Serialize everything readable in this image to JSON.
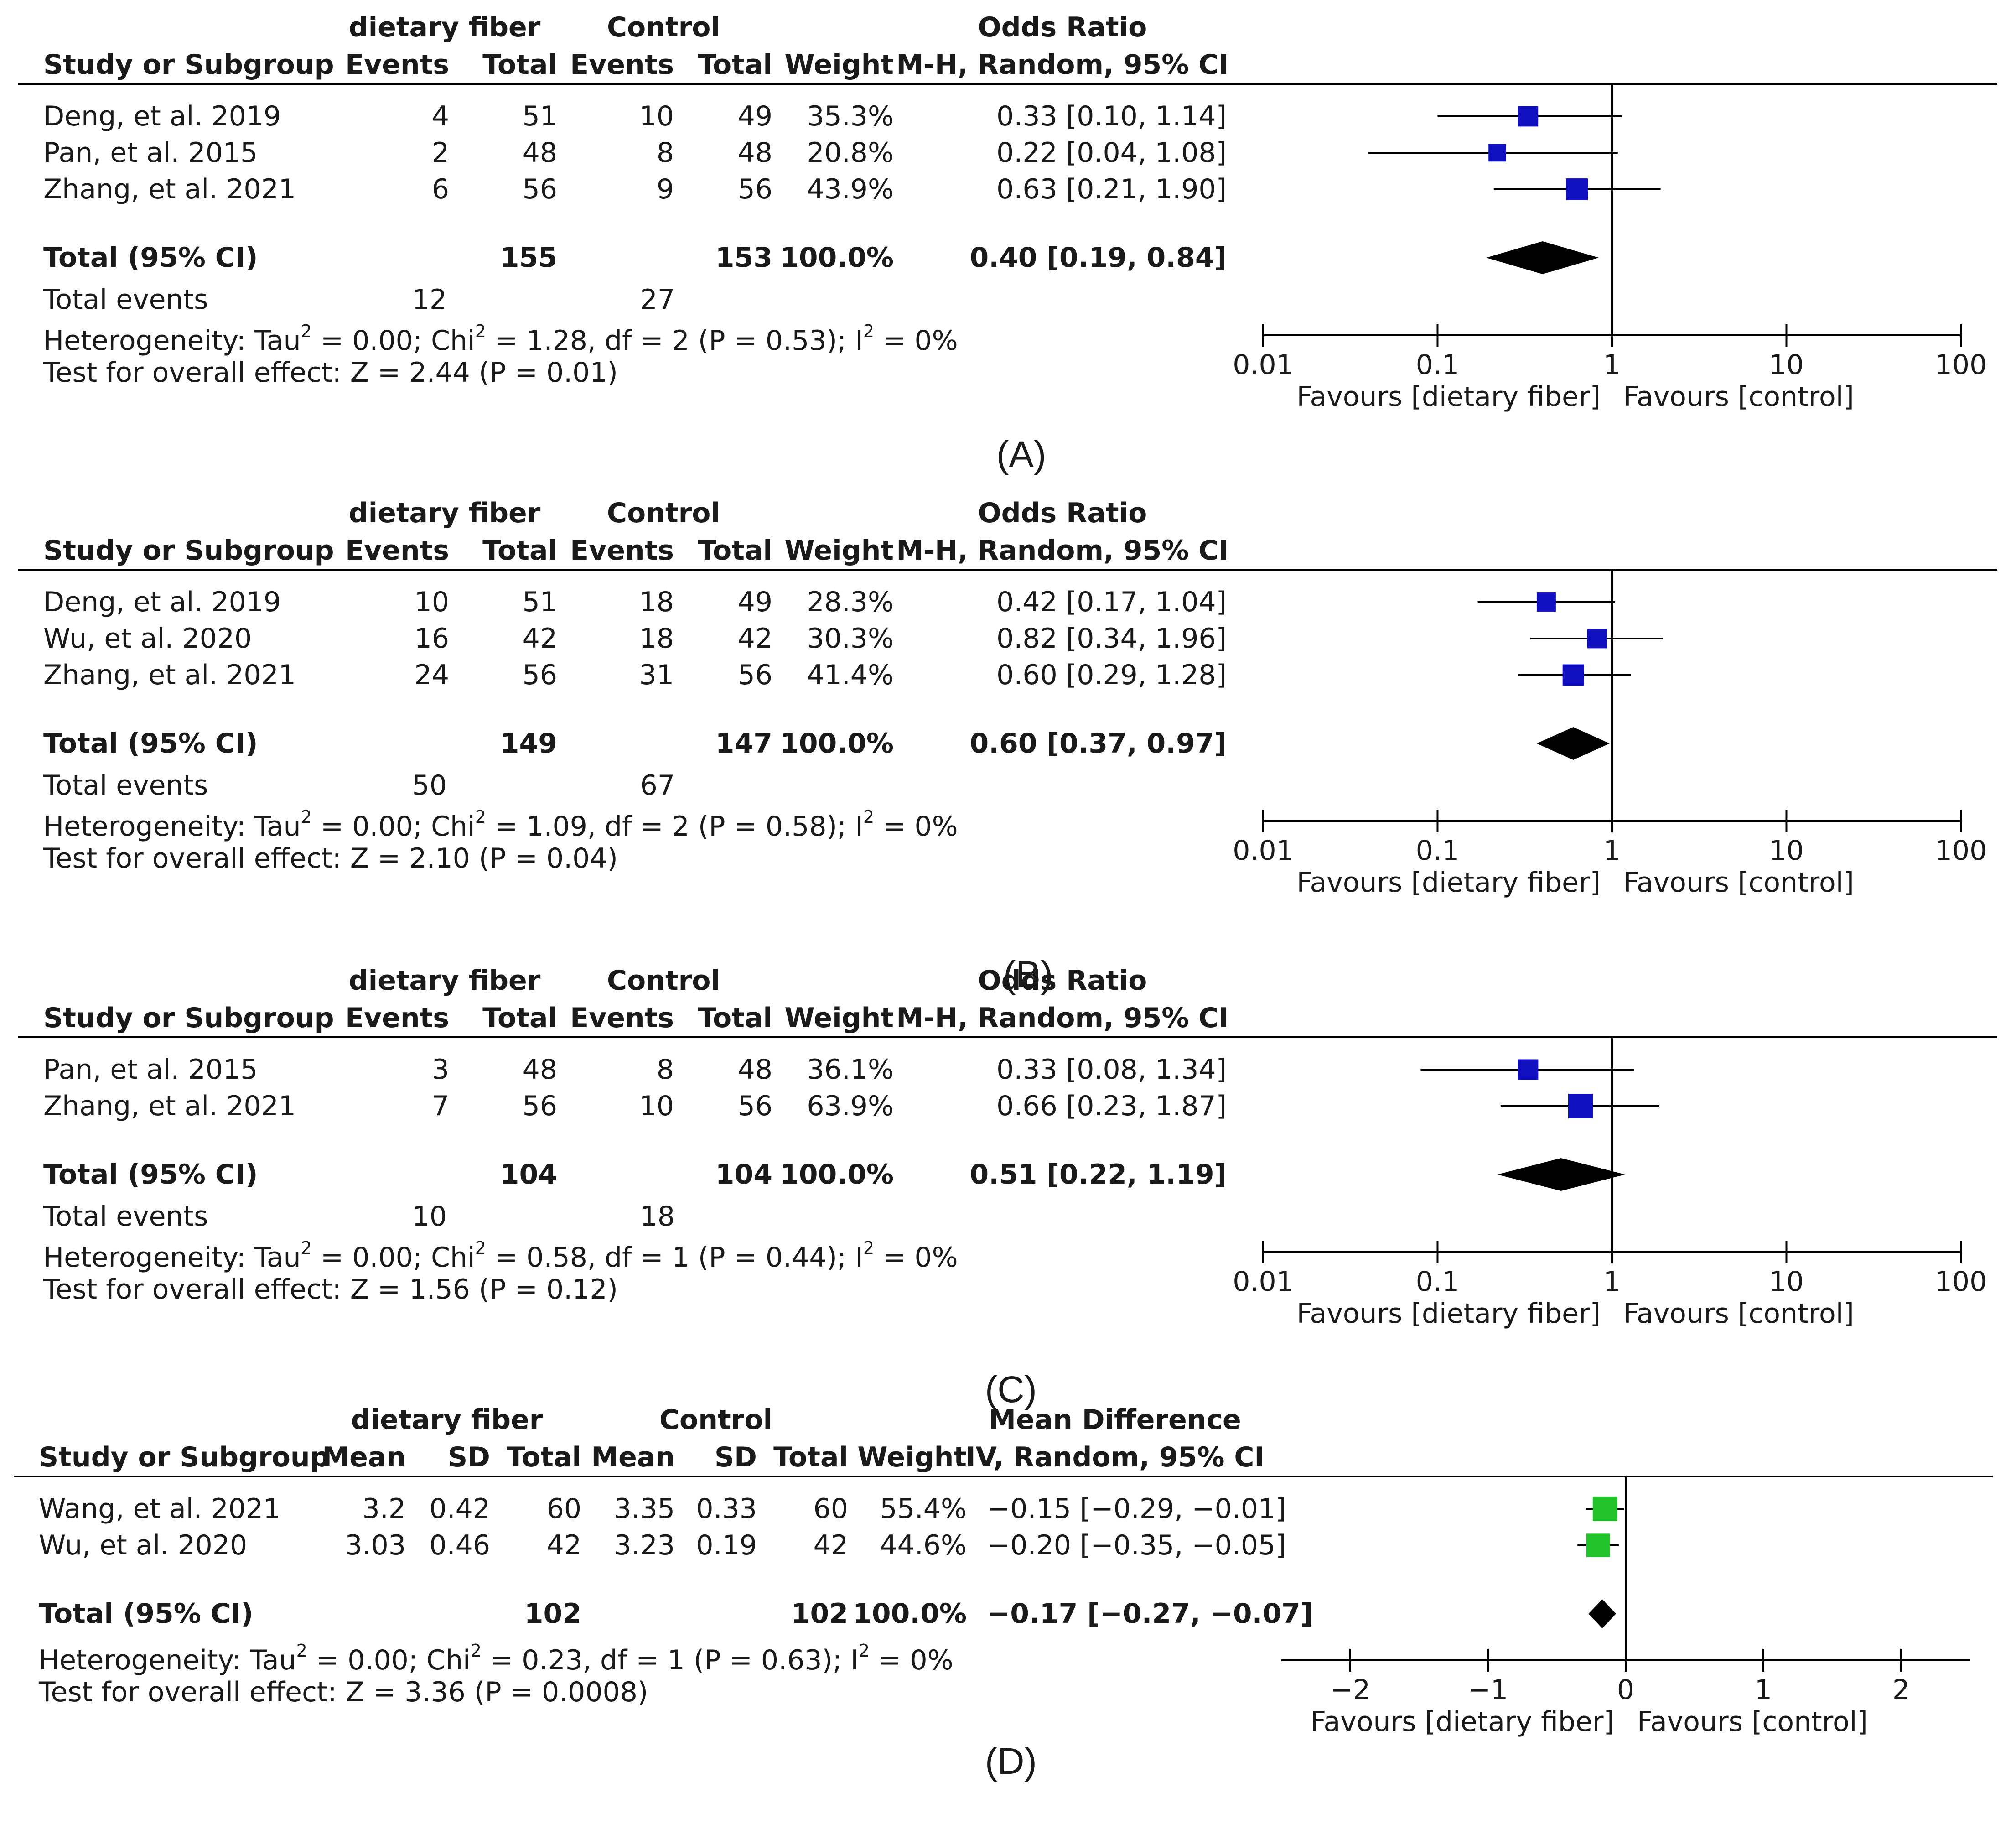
{
  "panels": [
    {
      "label": "(A)",
      "measure": "OR",
      "hdr_exp": "dietary fiber",
      "hdr_ctl": "Control",
      "col_study": "Study or Subgroup",
      "col_ev1": "Events",
      "col_tot1": "Total",
      "col_ev2": "Events",
      "col_tot2": "Total",
      "col_weight": "Weight",
      "effect_title": "Odds Ratio",
      "effect_method": "M-H, Random, 95% CI",
      "studies": [
        {
          "name": "Deng, et al. 2019",
          "e1": "4",
          "t1": "51",
          "e2": "10",
          "t2": "49",
          "weight": "35.3%",
          "ci_text": "0.33 [0.10, 1.14]"
        },
        {
          "name": "Pan, et al. 2015",
          "e1": "2",
          "t1": "48",
          "e2": "8",
          "t2": "48",
          "weight": "20.8%",
          "ci_text": "0.22 [0.04, 1.08]"
        },
        {
          "name": "Zhang, et al. 2021",
          "e1": "6",
          "t1": "56",
          "e2": "9",
          "t2": "56",
          "weight": "43.9%",
          "ci_text": "0.63 [0.21, 1.90]"
        }
      ],
      "total": {
        "label": "Total (95% CI)",
        "t1": "155",
        "t2": "153",
        "weight": "100.0%",
        "ci_text": "0.40 [0.19, 0.84]"
      },
      "events": {
        "label": "Total events",
        "e1": "12",
        "e2": "27"
      },
      "heterogeneity": {
        "pre": "Heterogeneity: Tau",
        "mid1": " = 0.00; Chi",
        "mid2": " = 1.28, df = 2 (P = 0.53); I",
        "post": " = 0%",
        "sup": "2"
      },
      "overall": "Test for overall effect: Z = 2.44 (P = 0.01)",
      "axis_ticks": [
        "0.01",
        "0.1",
        "1",
        "10",
        "100"
      ],
      "favours_left": "Favours [dietary fiber]",
      "favours_right": "Favours [control]"
    },
    {
      "label": "(B)",
      "measure": "OR",
      "hdr_exp": "dietary fiber",
      "hdr_ctl": "Control",
      "col_study": "Study or Subgroup",
      "col_ev1": "Events",
      "col_tot1": "Total",
      "col_ev2": "Events",
      "col_tot2": "Total",
      "col_weight": "Weight",
      "effect_title": "Odds Ratio",
      "effect_method": "M-H, Random, 95% CI",
      "studies": [
        {
          "name": "Deng, et al. 2019",
          "e1": "10",
          "t1": "51",
          "e2": "18",
          "t2": "49",
          "weight": "28.3%",
          "ci_text": "0.42 [0.17, 1.04]"
        },
        {
          "name": "Wu, et al. 2020",
          "e1": "16",
          "t1": "42",
          "e2": "18",
          "t2": "42",
          "weight": "30.3%",
          "ci_text": "0.82 [0.34, 1.96]"
        },
        {
          "name": "Zhang, et al. 2021",
          "e1": "24",
          "t1": "56",
          "e2": "31",
          "t2": "56",
          "weight": "41.4%",
          "ci_text": "0.60 [0.29, 1.28]"
        }
      ],
      "total": {
        "label": "Total (95% CI)",
        "t1": "149",
        "t2": "147",
        "weight": "100.0%",
        "ci_text": "0.60 [0.37, 0.97]"
      },
      "events": {
        "label": "Total events",
        "e1": "50",
        "e2": "67"
      },
      "heterogeneity": {
        "pre": "Heterogeneity: Tau",
        "mid1": " = 0.00; Chi",
        "mid2": " = 1.09, df = 2 (P = 0.58); I",
        "post": " = 0%",
        "sup": "2"
      },
      "overall": "Test for overall effect: Z = 2.10 (P = 0.04)",
      "axis_ticks": [
        "0.01",
        "0.1",
        "1",
        "10",
        "100"
      ],
      "favours_left": "Favours [dietary fiber]",
      "favours_right": "Favours [control]"
    },
    {
      "label": "(C)",
      "measure": "OR",
      "hdr_exp": "dietary fiber",
      "hdr_ctl": "Control",
      "col_study": "Study or Subgroup",
      "col_ev1": "Events",
      "col_tot1": "Total",
      "col_ev2": "Events",
      "col_tot2": "Total",
      "col_weight": "Weight",
      "effect_title": "Odds Ratio",
      "effect_method": "M-H, Random, 95% CI",
      "studies": [
        {
          "name": "Pan, et al. 2015",
          "e1": "3",
          "t1": "48",
          "e2": "8",
          "t2": "48",
          "weight": "36.1%",
          "ci_text": "0.33 [0.08, 1.34]"
        },
        {
          "name": "Zhang, et al. 2021",
          "e1": "7",
          "t1": "56",
          "e2": "10",
          "t2": "56",
          "weight": "63.9%",
          "ci_text": "0.66 [0.23, 1.87]"
        }
      ],
      "total": {
        "label": "Total (95% CI)",
        "t1": "104",
        "t2": "104",
        "weight": "100.0%",
        "ci_text": "0.51 [0.22, 1.19]"
      },
      "events": {
        "label": "Total events",
        "e1": "10",
        "e2": "18"
      },
      "heterogeneity": {
        "pre": "Heterogeneity: Tau",
        "mid1": " = 0.00; Chi",
        "mid2": " = 0.58, df = 1 (P = 0.44); I",
        "post": " = 0%",
        "sup": "2"
      },
      "overall": "Test for overall effect: Z = 1.56 (P = 0.12)",
      "axis_ticks": [
        "0.01",
        "0.1",
        "1",
        "10",
        "100"
      ],
      "favours_left": "Favours [dietary fiber]",
      "favours_right": "Favours [control]"
    },
    {
      "label": "(D)",
      "measure": "MD",
      "hdr_exp": "dietary fiber",
      "hdr_ctl": "Control",
      "col_study": "Study or Subgroup",
      "col_mean1": "Mean",
      "col_sd1": "SD",
      "col_tot1": "Total",
      "col_mean2": "Mean",
      "col_sd2": "SD",
      "col_tot2": "Total",
      "col_weight": "Weight",
      "effect_title": "Mean Difference",
      "effect_method": "IV, Random, 95% CI",
      "studies": [
        {
          "name": "Wang, et al. 2021",
          "m1": "3.2",
          "sd1": "0.42",
          "t1": "60",
          "m2": "3.35",
          "sd2": "0.33",
          "t2": "60",
          "weight": "55.4%",
          "ci_text": "−0.15 [−0.29, −0.01]"
        },
        {
          "name": "Wu, et al. 2020",
          "m1": "3.03",
          "sd1": "0.46",
          "t1": "42",
          "m2": "3.23",
          "sd2": "0.19",
          "t2": "42",
          "weight": "44.6%",
          "ci_text": "−0.20 [−0.35, −0.05]"
        }
      ],
      "total": {
        "label": "Total (95% CI)",
        "t1": "102",
        "t2": "102",
        "weight": "100.0%",
        "ci_text": "−0.17 [−0.27, −0.07]"
      },
      "heterogeneity": {
        "pre": "Heterogeneity: Tau",
        "mid1": " = 0.00; Chi",
        "mid2": " = 0.23, df = 1 (P = 0.63); I",
        "post": " = 0%",
        "sup": "2"
      },
      "overall": "Test for overall effect: Z = 3.36 (P = 0.0008)",
      "axis_ticks": [
        "−2",
        "−1",
        "0",
        "1",
        "2"
      ],
      "favours_left": "Favours [dietary fiber]",
      "favours_right": "Favours [control]"
    }
  ],
  "colors": {
    "or_marker": "#1010c0",
    "md_marker": "#22c32a",
    "diamond": "#000000",
    "line": "#000000"
  },
  "chart_data": [
    {
      "type": "forest",
      "title": "(A)",
      "scale": "log",
      "xlim": [
        0.01,
        100
      ],
      "ticks": [
        0.01,
        0.1,
        1,
        10,
        100
      ],
      "studies": [
        {
          "name": "Deng, et al. 2019",
          "est": 0.33,
          "lo": 0.1,
          "hi": 1.14,
          "weight": 35.3
        },
        {
          "name": "Pan, et al. 2015",
          "est": 0.22,
          "lo": 0.04,
          "hi": 1.08,
          "weight": 20.8
        },
        {
          "name": "Zhang, et al. 2021",
          "est": 0.63,
          "lo": 0.21,
          "hi": 1.9,
          "weight": 43.9
        }
      ],
      "pooled": {
        "est": 0.4,
        "lo": 0.19,
        "hi": 0.84
      },
      "xlabel_left": "Favours [dietary fiber]",
      "xlabel_right": "Favours [control]"
    },
    {
      "type": "forest",
      "title": "(B)",
      "scale": "log",
      "xlim": [
        0.01,
        100
      ],
      "ticks": [
        0.01,
        0.1,
        1,
        10,
        100
      ],
      "studies": [
        {
          "name": "Deng, et al. 2019",
          "est": 0.42,
          "lo": 0.17,
          "hi": 1.04,
          "weight": 28.3
        },
        {
          "name": "Wu, et al. 2020",
          "est": 0.82,
          "lo": 0.34,
          "hi": 1.96,
          "weight": 30.3
        },
        {
          "name": "Zhang, et al. 2021",
          "est": 0.6,
          "lo": 0.29,
          "hi": 1.28,
          "weight": 41.4
        }
      ],
      "pooled": {
        "est": 0.6,
        "lo": 0.37,
        "hi": 0.97
      },
      "xlabel_left": "Favours [dietary fiber]",
      "xlabel_right": "Favours [control]"
    },
    {
      "type": "forest",
      "title": "(C)",
      "scale": "log",
      "xlim": [
        0.01,
        100
      ],
      "ticks": [
        0.01,
        0.1,
        1,
        10,
        100
      ],
      "studies": [
        {
          "name": "Pan, et al. 2015",
          "est": 0.33,
          "lo": 0.08,
          "hi": 1.34,
          "weight": 36.1
        },
        {
          "name": "Zhang, et al. 2021",
          "est": 0.66,
          "lo": 0.23,
          "hi": 1.87,
          "weight": 63.9
        }
      ],
      "pooled": {
        "est": 0.51,
        "lo": 0.22,
        "hi": 1.19
      },
      "xlabel_left": "Favours [dietary fiber]",
      "xlabel_right": "Favours [control]"
    },
    {
      "type": "forest",
      "title": "(D)",
      "scale": "linear",
      "xlim": [
        -2.5,
        2.5
      ],
      "ticks": [
        -2,
        -1,
        0,
        1,
        2
      ],
      "studies": [
        {
          "name": "Wang, et al. 2021",
          "est": -0.15,
          "lo": -0.29,
          "hi": -0.01,
          "weight": 55.4
        },
        {
          "name": "Wu, et al. 2020",
          "est": -0.2,
          "lo": -0.35,
          "hi": -0.05,
          "weight": 44.6
        }
      ],
      "pooled": {
        "est": -0.17,
        "lo": -0.27,
        "hi": -0.07
      },
      "xlabel_left": "Favours [dietary fiber]",
      "xlabel_right": "Favours [control]"
    }
  ]
}
